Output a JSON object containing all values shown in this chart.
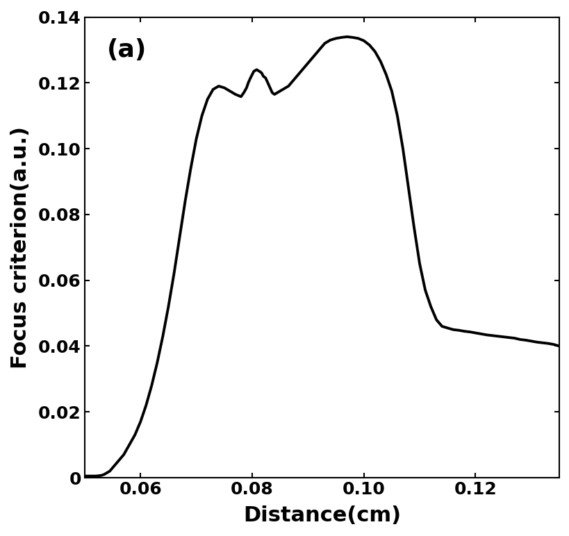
{
  "xlabel": "Distance(cm)",
  "ylabel": "Focus criterion(a.u.)",
  "label": "(a)",
  "xlim": [
    0.05,
    0.135
  ],
  "ylim": [
    0,
    0.14
  ],
  "xticks": [
    0.06,
    0.08,
    0.1,
    0.12
  ],
  "yticks": [
    0,
    0.02,
    0.04,
    0.06,
    0.08,
    0.1,
    0.12,
    0.14
  ],
  "line_color": "#000000",
  "line_width": 2.8,
  "background_color": "#ffffff",
  "x": [
    0.05,
    0.051,
    0.052,
    0.053,
    0.0535,
    0.054,
    0.0545,
    0.055,
    0.0555,
    0.056,
    0.057,
    0.058,
    0.059,
    0.06,
    0.061,
    0.062,
    0.063,
    0.064,
    0.065,
    0.066,
    0.067,
    0.068,
    0.069,
    0.07,
    0.071,
    0.072,
    0.073,
    0.074,
    0.075,
    0.076,
    0.077,
    0.078,
    0.0785,
    0.079,
    0.0793,
    0.0797,
    0.08,
    0.0803,
    0.0808,
    0.0813,
    0.0817,
    0.082,
    0.0824,
    0.0828,
    0.0832,
    0.0836,
    0.084,
    0.0845,
    0.085,
    0.0855,
    0.086,
    0.0865,
    0.087,
    0.0875,
    0.088,
    0.0885,
    0.089,
    0.0895,
    0.09,
    0.0905,
    0.091,
    0.0915,
    0.092,
    0.093,
    0.094,
    0.095,
    0.096,
    0.097,
    0.098,
    0.099,
    0.1,
    0.101,
    0.102,
    0.103,
    0.104,
    0.105,
    0.106,
    0.107,
    0.108,
    0.109,
    0.11,
    0.111,
    0.112,
    0.113,
    0.114,
    0.115,
    0.116,
    0.117,
    0.118,
    0.119,
    0.12,
    0.121,
    0.122,
    0.123,
    0.124,
    0.125,
    0.126,
    0.127,
    0.128,
    0.129,
    0.13,
    0.131,
    0.132,
    0.133,
    0.134,
    0.135
  ],
  "y": [
    0.0005,
    0.0005,
    0.0005,
    0.0007,
    0.001,
    0.0015,
    0.002,
    0.003,
    0.004,
    0.005,
    0.007,
    0.01,
    0.013,
    0.017,
    0.022,
    0.028,
    0.035,
    0.043,
    0.052,
    0.062,
    0.073,
    0.084,
    0.094,
    0.103,
    0.11,
    0.115,
    0.118,
    0.119,
    0.1185,
    0.1175,
    0.1165,
    0.1158,
    0.117,
    0.1185,
    0.12,
    0.1215,
    0.1225,
    0.1235,
    0.124,
    0.1235,
    0.123,
    0.122,
    0.1215,
    0.12,
    0.1185,
    0.117,
    0.1165,
    0.117,
    0.1175,
    0.118,
    0.1185,
    0.119,
    0.12,
    0.121,
    0.122,
    0.123,
    0.124,
    0.125,
    0.126,
    0.127,
    0.128,
    0.129,
    0.13,
    0.132,
    0.133,
    0.1335,
    0.1338,
    0.134,
    0.1338,
    0.1335,
    0.1328,
    0.1315,
    0.1295,
    0.1265,
    0.1225,
    0.1175,
    0.11,
    0.1,
    0.088,
    0.076,
    0.065,
    0.057,
    0.052,
    0.048,
    0.046,
    0.0455,
    0.045,
    0.0448,
    0.0445,
    0.0443,
    0.044,
    0.0437,
    0.0434,
    0.0432,
    0.043,
    0.0428,
    0.0426,
    0.0424,
    0.042,
    0.0418,
    0.0415,
    0.0412,
    0.041,
    0.0408,
    0.0405,
    0.04
  ]
}
